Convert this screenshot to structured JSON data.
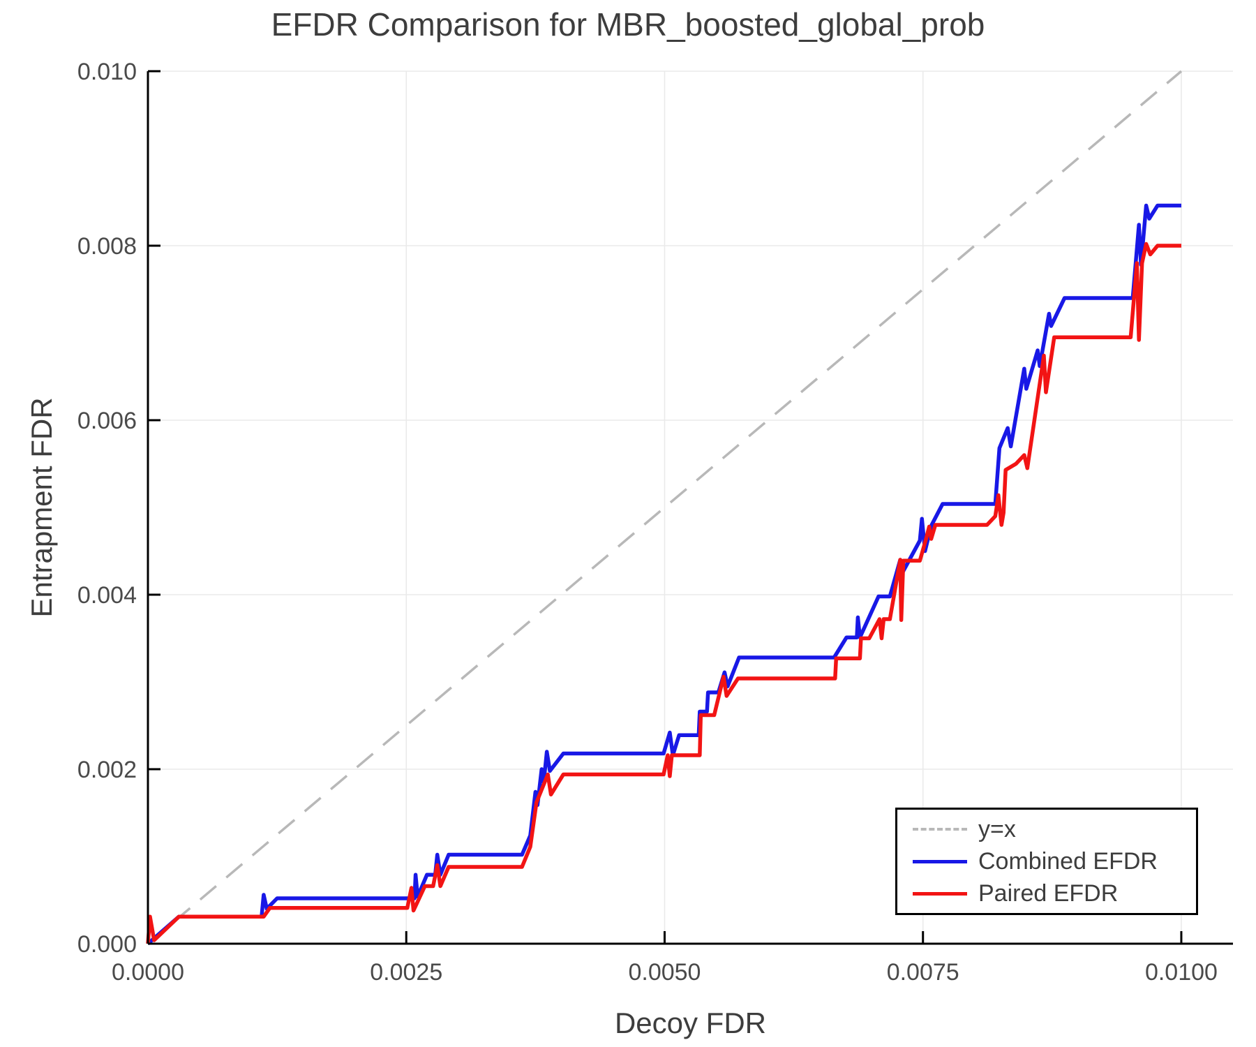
{
  "chart_data": {
    "type": "line",
    "title": "EFDR Comparison for MBR_boosted_global_prob",
    "xlabel": "Decoy FDR",
    "ylabel": "Entrapment FDR",
    "xlim": [
      0,
      0.0105
    ],
    "ylim": [
      0,
      0.01
    ],
    "grid": true,
    "legend_position": "lower right",
    "x_ticks": [
      {
        "value": 0.0,
        "label": "0.0000"
      },
      {
        "value": 0.0025,
        "label": "0.0025"
      },
      {
        "value": 0.005,
        "label": "0.0050"
      },
      {
        "value": 0.0075,
        "label": "0.0075"
      },
      {
        "value": 0.01,
        "label": "0.0100"
      }
    ],
    "y_ticks": [
      {
        "value": 0.0,
        "label": "0.000"
      },
      {
        "value": 0.002,
        "label": "0.002"
      },
      {
        "value": 0.004,
        "label": "0.004"
      },
      {
        "value": 0.006,
        "label": "0.006"
      },
      {
        "value": 0.008,
        "label": "0.008"
      },
      {
        "value": 0.01,
        "label": "0.010"
      }
    ],
    "series": [
      {
        "name": "y=x",
        "color": "#b8b8b8",
        "dashed": true,
        "width": 3.5,
        "points": [
          [
            0,
            0
          ],
          [
            0.01,
            0.01
          ]
        ]
      },
      {
        "name": "Combined EFDR",
        "color": "#1818e6",
        "dashed": false,
        "width": 5.5,
        "points": [
          [
            0.0,
            0.0
          ],
          [
            0.0003,
            0.00031
          ],
          [
            0.0011,
            0.00031
          ],
          [
            0.00112,
            0.00056
          ],
          [
            0.00115,
            0.0004
          ],
          [
            0.00125,
            0.00052
          ],
          [
            0.00247,
            0.00052
          ],
          [
            0.00258,
            0.00052
          ],
          [
            0.00259,
            0.00079
          ],
          [
            0.00261,
            0.00054
          ],
          [
            0.0027,
            0.00079
          ],
          [
            0.00278,
            0.00079
          ],
          [
            0.0028,
            0.00102
          ],
          [
            0.00283,
            0.00079
          ],
          [
            0.00291,
            0.00102
          ],
          [
            0.00362,
            0.00102
          ],
          [
            0.0037,
            0.00124
          ],
          [
            0.00375,
            0.00174
          ],
          [
            0.00377,
            0.00159
          ],
          [
            0.00381,
            0.002
          ],
          [
            0.00383,
            0.00185
          ],
          [
            0.00386,
            0.0022
          ],
          [
            0.00389,
            0.00198
          ],
          [
            0.00402,
            0.00218
          ],
          [
            0.00499,
            0.00218
          ],
          [
            0.00505,
            0.00242
          ],
          [
            0.00508,
            0.00216
          ],
          [
            0.00514,
            0.00239
          ],
          [
            0.00533,
            0.00239
          ],
          [
            0.00534,
            0.00266
          ],
          [
            0.00541,
            0.00266
          ],
          [
            0.00542,
            0.00288
          ],
          [
            0.00552,
            0.00288
          ],
          [
            0.00558,
            0.00311
          ],
          [
            0.00561,
            0.00295
          ],
          [
            0.00572,
            0.00328
          ],
          [
            0.00664,
            0.00328
          ],
          [
            0.00676,
            0.00351
          ],
          [
            0.00686,
            0.00351
          ],
          [
            0.00687,
            0.00374
          ],
          [
            0.00689,
            0.00351
          ],
          [
            0.00707,
            0.00398
          ],
          [
            0.00718,
            0.00398
          ],
          [
            0.00728,
            0.0044
          ],
          [
            0.0073,
            0.00425
          ],
          [
            0.00747,
            0.00462
          ],
          [
            0.00749,
            0.00487
          ],
          [
            0.00752,
            0.0045
          ],
          [
            0.00758,
            0.00479
          ],
          [
            0.00769,
            0.00504
          ],
          [
            0.0082,
            0.00504
          ],
          [
            0.00824,
            0.00568
          ],
          [
            0.00832,
            0.00591
          ],
          [
            0.00835,
            0.0057
          ],
          [
            0.00848,
            0.00659
          ],
          [
            0.0085,
            0.00636
          ],
          [
            0.00861,
            0.0068
          ],
          [
            0.00863,
            0.00662
          ],
          [
            0.00872,
            0.00722
          ],
          [
            0.00874,
            0.00708
          ],
          [
            0.00887,
            0.0074
          ],
          [
            0.00953,
            0.0074
          ],
          [
            0.00959,
            0.00824
          ],
          [
            0.00961,
            0.00778
          ],
          [
            0.00966,
            0.00846
          ],
          [
            0.00969,
            0.00831
          ],
          [
            0.00977,
            0.00846
          ],
          [
            0.01,
            0.00846
          ]
        ]
      },
      {
        "name": "Paired EFDR",
        "color": "#f21414",
        "dashed": false,
        "width": 5.5,
        "points": [
          [
            0.0,
            0.0
          ],
          [
            2e-05,
            0.00031
          ],
          [
            6e-05,
            4e-05
          ],
          [
            0.0003,
            0.00031
          ],
          [
            0.00112,
            0.00031
          ],
          [
            0.00118,
            0.00041
          ],
          [
            0.00125,
            0.00041
          ],
          [
            0.00251,
            0.00041
          ],
          [
            0.00255,
            0.00064
          ],
          [
            0.00257,
            0.00038
          ],
          [
            0.00268,
            0.00066
          ],
          [
            0.00276,
            0.00066
          ],
          [
            0.0028,
            0.0009
          ],
          [
            0.00283,
            0.00066
          ],
          [
            0.00291,
            0.00088
          ],
          [
            0.00362,
            0.00088
          ],
          [
            0.0037,
            0.00111
          ],
          [
            0.00376,
            0.00162
          ],
          [
            0.00387,
            0.00194
          ],
          [
            0.0039,
            0.00171
          ],
          [
            0.00402,
            0.00194
          ],
          [
            0.00499,
            0.00194
          ],
          [
            0.00503,
            0.00216
          ],
          [
            0.00505,
            0.00192
          ],
          [
            0.00507,
            0.00216
          ],
          [
            0.00534,
            0.00216
          ],
          [
            0.00535,
            0.00262
          ],
          [
            0.00548,
            0.00262
          ],
          [
            0.00557,
            0.00306
          ],
          [
            0.0056,
            0.00284
          ],
          [
            0.00571,
            0.00304
          ],
          [
            0.00665,
            0.00304
          ],
          [
            0.00666,
            0.00327
          ],
          [
            0.00689,
            0.00327
          ],
          [
            0.0069,
            0.0035
          ],
          [
            0.00698,
            0.0035
          ],
          [
            0.00708,
            0.00372
          ],
          [
            0.0071,
            0.0035
          ],
          [
            0.00712,
            0.00372
          ],
          [
            0.00718,
            0.00372
          ],
          [
            0.00728,
            0.0044
          ],
          [
            0.00729,
            0.00371
          ],
          [
            0.00731,
            0.00439
          ],
          [
            0.00747,
            0.00439
          ],
          [
            0.00753,
            0.00464
          ],
          [
            0.00756,
            0.00478
          ],
          [
            0.00758,
            0.00464
          ],
          [
            0.00762,
            0.0048
          ],
          [
            0.00812,
            0.0048
          ],
          [
            0.0082,
            0.0049
          ],
          [
            0.00823,
            0.00514
          ],
          [
            0.00826,
            0.0048
          ],
          [
            0.00828,
            0.00494
          ],
          [
            0.0083,
            0.00543
          ],
          [
            0.0084,
            0.0055
          ],
          [
            0.00848,
            0.0056
          ],
          [
            0.00851,
            0.00545
          ],
          [
            0.00867,
            0.00674
          ],
          [
            0.00869,
            0.00632
          ],
          [
            0.00877,
            0.00695
          ],
          [
            0.00951,
            0.00695
          ],
          [
            0.00957,
            0.0078
          ],
          [
            0.00959,
            0.00692
          ],
          [
            0.00962,
            0.0078
          ],
          [
            0.00966,
            0.00802
          ],
          [
            0.0097,
            0.0079
          ],
          [
            0.00977,
            0.008
          ],
          [
            0.01,
            0.008
          ]
        ]
      }
    ],
    "style": {
      "grid_color": "#eaeaea",
      "spine_color": "#000000",
      "tick_label_color": "#4a4a4a",
      "text_color": "#3d3d3d",
      "background": "#ffffff"
    }
  },
  "legend": {
    "entries": [
      "y=x",
      "Combined EFDR",
      "Paired EFDR"
    ]
  }
}
